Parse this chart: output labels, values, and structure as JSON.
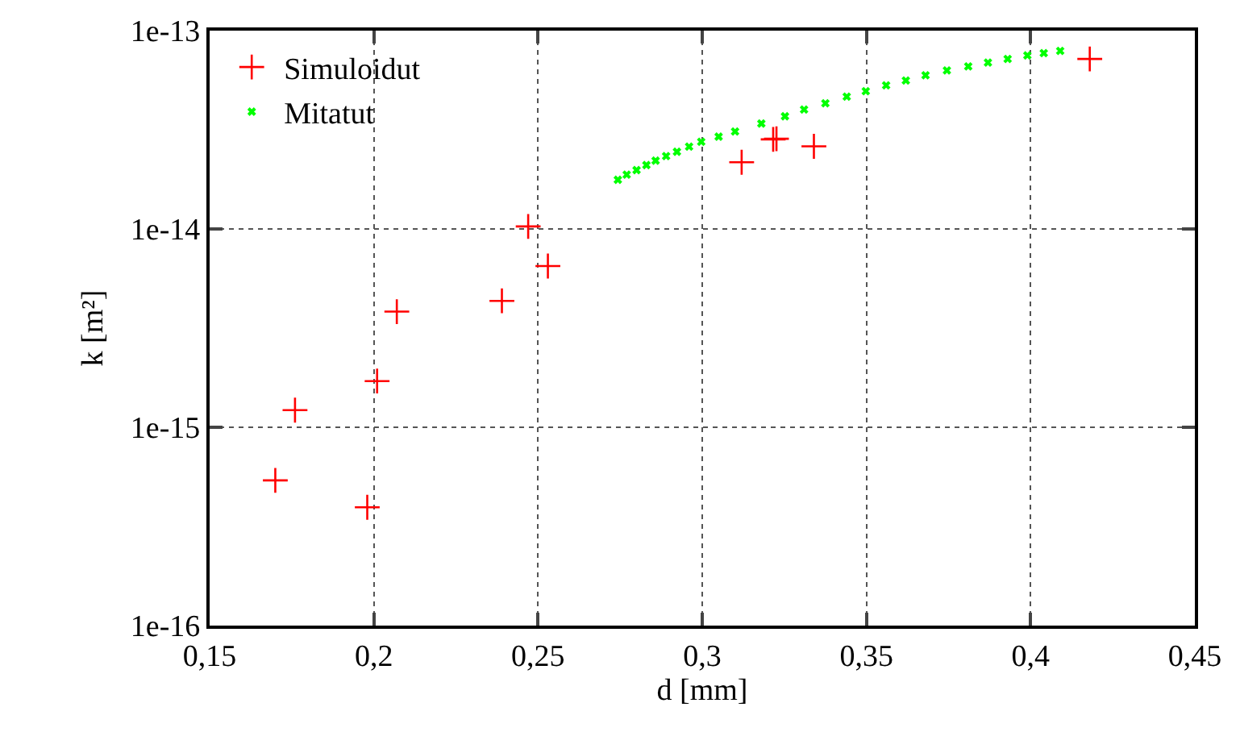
{
  "chart_data": {
    "type": "scatter",
    "xlabel": "d [mm]",
    "ylabel": "k [m²]",
    "xlim": [
      0.15,
      0.45
    ],
    "xticks": [
      {
        "value": 0.15,
        "label": "0,15"
      },
      {
        "value": 0.2,
        "label": "0,2"
      },
      {
        "value": 0.25,
        "label": "0,25"
      },
      {
        "value": 0.3,
        "label": "0,3"
      },
      {
        "value": 0.35,
        "label": "0,35"
      },
      {
        "value": 0.4,
        "label": "0,4"
      },
      {
        "value": 0.45,
        "label": "0,45"
      }
    ],
    "ylim": [
      1e-16,
      1e-13
    ],
    "yticks": [
      {
        "value": 1e-16,
        "label": "1e-16"
      },
      {
        "value": 1e-15,
        "label": "1e-15"
      },
      {
        "value": 1e-14,
        "label": "1e-14"
      },
      {
        "value": 1e-13,
        "label": "1e-13"
      }
    ],
    "log": "y",
    "grid": true,
    "legend": "top left",
    "series": [
      {
        "name": "Simuloidut",
        "color": "#ff0000",
        "marker": "cross",
        "x": [
          0.17,
          0.176,
          0.198,
          0.201,
          0.207,
          0.239,
          0.247,
          0.253,
          0.312,
          0.3216,
          0.3226,
          0.334,
          0.418
        ],
        "values": [
          5.4e-16,
          1.22e-15,
          3.95e-16,
          1.71e-15,
          3.83e-15,
          4.34e-15,
          1.03e-14,
          6.5e-15,
          2.17e-14,
          2.83e-14,
          2.85e-14,
          2.61e-14,
          7.2e-14
        ]
      },
      {
        "name": "Mitatut",
        "color": "#00ff00",
        "marker": "cross",
        "x": [
          0.2743,
          0.277,
          0.28,
          0.283,
          0.2858,
          0.289,
          0.2923,
          0.296,
          0.2997,
          0.305,
          0.31,
          0.318,
          0.3252,
          0.331,
          0.3375,
          0.344,
          0.3498,
          0.356,
          0.362,
          0.368,
          0.3745,
          0.381,
          0.387,
          0.393,
          0.399,
          0.404,
          0.409
        ],
        "values": [
          1.77e-14,
          1.88e-14,
          1.98e-14,
          2.1e-14,
          2.21e-14,
          2.33e-14,
          2.45e-14,
          2.6e-14,
          2.75e-14,
          2.92e-14,
          3.1e-14,
          3.4e-14,
          3.7e-14,
          4e-14,
          4.3e-14,
          4.65e-14,
          4.95e-14,
          5.3e-14,
          5.6e-14,
          5.95e-14,
          6.3e-14,
          6.6e-14,
          6.9e-14,
          7.2e-14,
          7.5e-14,
          7.7e-14,
          7.9e-14
        ]
      }
    ]
  }
}
